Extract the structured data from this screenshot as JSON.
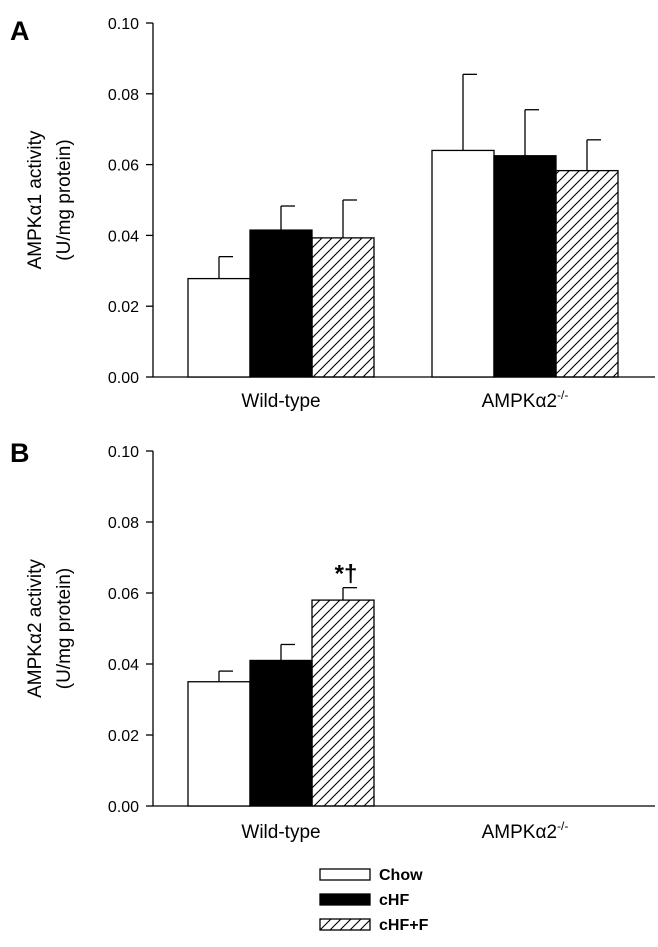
{
  "colors": {
    "chow": "#ffffff",
    "chf": "#000000",
    "chff_hatch": "#000000",
    "stroke": "#000000"
  },
  "legend": [
    {
      "key": "chow",
      "label": "Chow"
    },
    {
      "key": "chf",
      "label": "cHF"
    },
    {
      "key": "chff",
      "label": "cHF+F"
    }
  ],
  "chart_data": [
    {
      "type": "bar",
      "panel": "A",
      "ylabel": "AMPKα1 activity",
      "ylabel_units": "(U/mg protein)",
      "ylim": [
        0,
        0.1
      ],
      "yticks": [
        "0.00",
        "0.02",
        "0.04",
        "0.06",
        "0.08",
        "0.10"
      ],
      "categories": [
        "Wild-type",
        "AMPKα2"
      ],
      "category_superscript": [
        "",
        "-/-"
      ],
      "series": [
        {
          "name": "Chow",
          "key": "chow",
          "values": [
            0.0278,
            0.064
          ],
          "errors": [
            0.0062,
            0.0215
          ]
        },
        {
          "name": "cHF",
          "key": "chf",
          "values": [
            0.0415,
            0.0625
          ],
          "errors": [
            0.0068,
            0.013
          ]
        },
        {
          "name": "cHF+F",
          "key": "chff",
          "values": [
            0.0393,
            0.0583
          ],
          "errors": [
            0.0107,
            0.0087
          ]
        }
      ],
      "annotations": []
    },
    {
      "type": "bar",
      "panel": "B",
      "ylabel": "AMPKα2 activity",
      "ylabel_units": "(U/mg protein)",
      "ylim": [
        0,
        0.1
      ],
      "yticks": [
        "0.00",
        "0.02",
        "0.04",
        "0.06",
        "0.08",
        "0.10"
      ],
      "categories": [
        "Wild-type",
        "AMPKα2"
      ],
      "category_superscript": [
        "",
        "-/-"
      ],
      "series": [
        {
          "name": "Chow",
          "key": "chow",
          "values": [
            0.035,
            null
          ],
          "errors": [
            0.003,
            null
          ]
        },
        {
          "name": "cHF",
          "key": "chf",
          "values": [
            0.041,
            null
          ],
          "errors": [
            0.0045,
            null
          ]
        },
        {
          "name": "cHF+F",
          "key": "chff",
          "values": [
            0.058,
            null
          ],
          "errors": [
            0.0035,
            null
          ]
        }
      ],
      "annotations": [
        {
          "category": 0,
          "series": 2,
          "text": "*†"
        }
      ]
    }
  ]
}
